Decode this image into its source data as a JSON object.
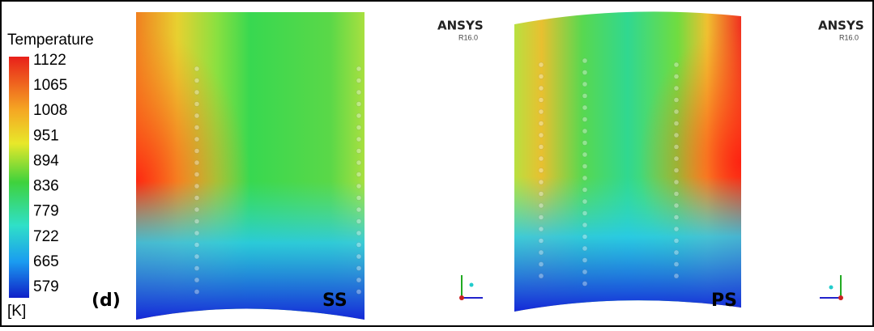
{
  "legend": {
    "title": "Temperature",
    "labels": [
      "1122",
      "1065",
      "1008",
      "951",
      "894",
      "836",
      "779",
      "722",
      "665",
      "579"
    ],
    "unit": "[K]"
  },
  "panel_label": "(d)",
  "views": [
    {
      "side": "SS",
      "brand": "ANSYS",
      "version": "R16.0"
    },
    {
      "side": "PS",
      "brand": "ANSYS",
      "version": "R16.0"
    }
  ]
}
